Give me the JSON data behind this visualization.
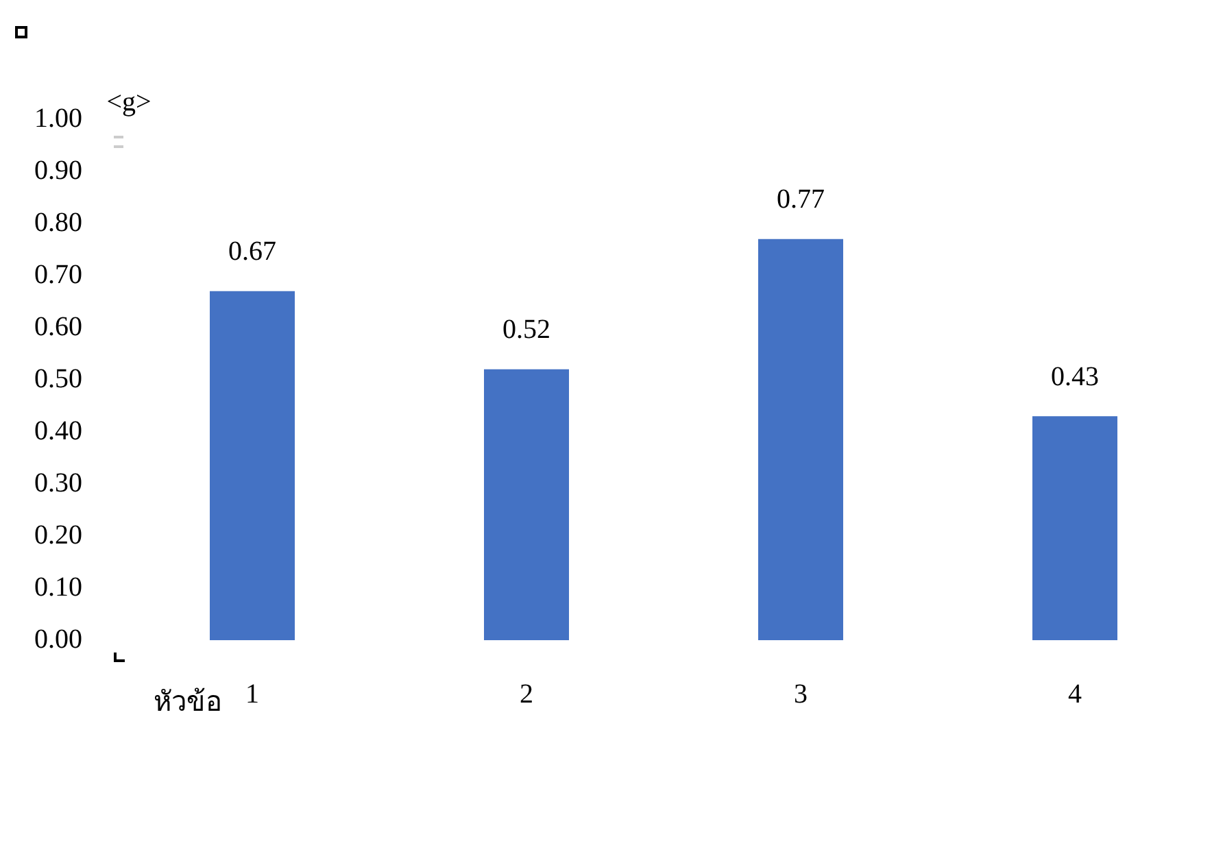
{
  "chart_data": {
    "type": "bar",
    "xlabel": "หัวข้อ",
    "ylabel": "<g>",
    "categories": [
      "1",
      "2",
      "3",
      "4"
    ],
    "values": [
      0.67,
      0.52,
      0.77,
      0.43
    ],
    "color": "#4472c4",
    "ylim": [
      0,
      1
    ],
    "yticks": [
      {
        "value": 0,
        "label": "0.00"
      },
      {
        "value": 0.1,
        "label": "0.10"
      },
      {
        "value": 0.2,
        "label": "0.20"
      },
      {
        "value": 0.3,
        "label": "0.30"
      },
      {
        "value": 0.4,
        "label": "0.40"
      },
      {
        "value": 0.5,
        "label": "0.50"
      },
      {
        "value": 0.6,
        "label": "0.60"
      },
      {
        "value": 0.7,
        "label": "0.70"
      },
      {
        "value": 0.8,
        "label": "0.80"
      },
      {
        "value": 0.9,
        "label": "0.90"
      },
      {
        "value": 1,
        "label": "1.00"
      }
    ],
    "grid": false,
    "legend": false,
    "data_labels": true
  }
}
